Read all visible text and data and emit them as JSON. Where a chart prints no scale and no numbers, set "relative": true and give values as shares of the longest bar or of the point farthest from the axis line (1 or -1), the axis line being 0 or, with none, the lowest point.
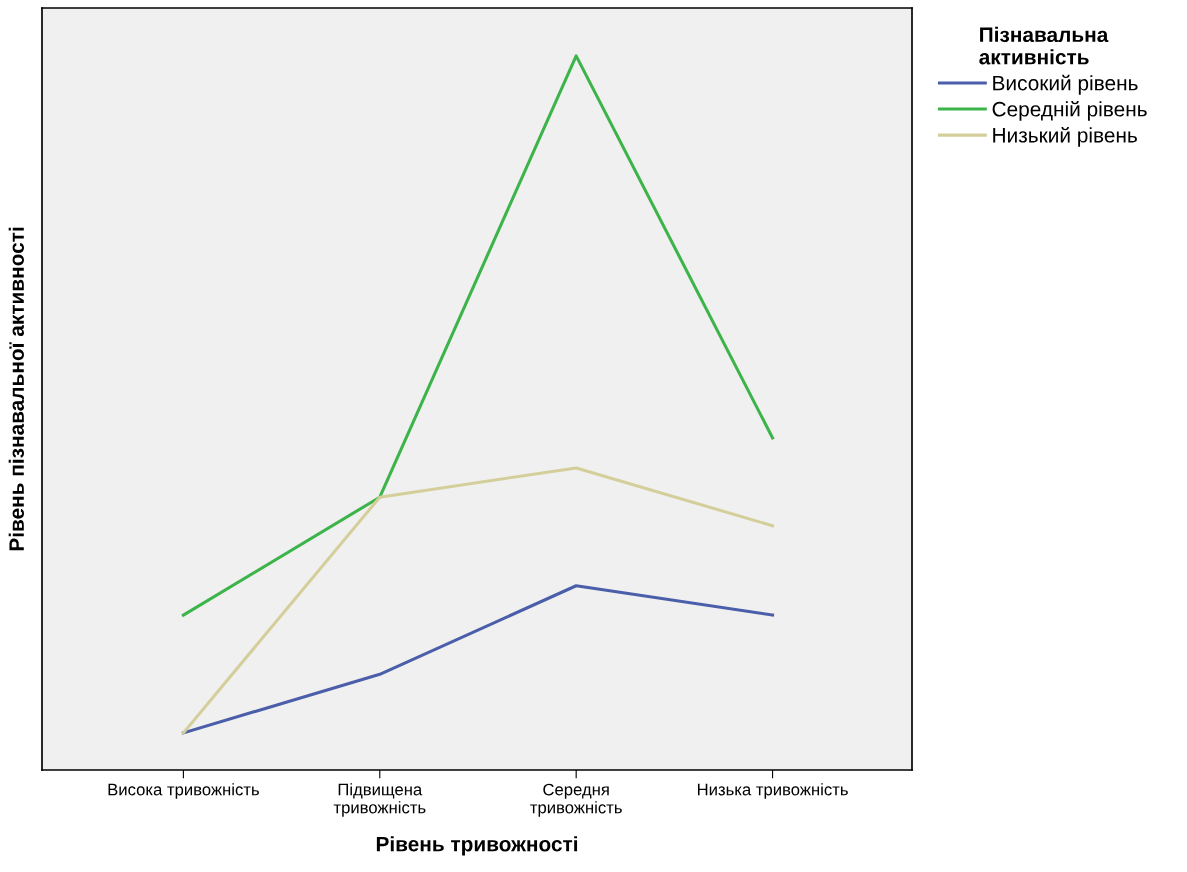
{
  "chart_data": {
    "type": "line",
    "relative": true,
    "xlabel": "Рівень тривожності",
    "ylabel": "Рівень пізнавальної активності",
    "legend_title": "Пізнавальна\nактивність",
    "legend": "right",
    "grid": false,
    "marker": "none",
    "line_style": "solid",
    "categories": [
      "Висока тривожність",
      "Підвищена\nтривожність",
      "Середня\nтривожність",
      "Низька тривожність"
    ],
    "series": [
      {
        "name": "Високий рівень",
        "color": "#4a5eaa",
        "values": [
          0.052,
          0.134,
          0.258,
          0.217
        ]
      },
      {
        "name": "Середній рівень",
        "color": "#3cb44a",
        "values": [
          0.217,
          0.382,
          1,
          0.465
        ]
      },
      {
        "name": "Низький рівень",
        "color": "#d4cf9a",
        "values": [
          0.052,
          0.382,
          0.423,
          0.342
        ]
      }
    ]
  }
}
